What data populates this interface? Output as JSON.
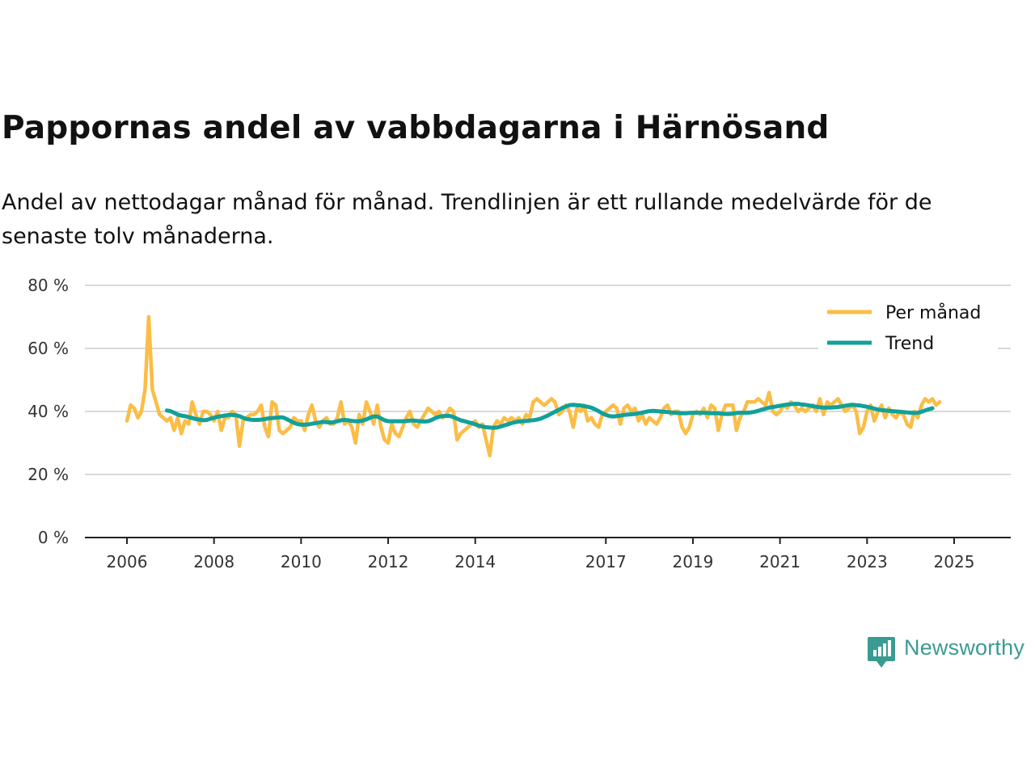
{
  "title": "Pappornas andel av vabbdagarna i Härnösand",
  "subtitle": "Andel av nettodagar månad för månad. Trendlinjen är ett rullande medelvärde för de senaste tolv månaderna.",
  "brand": {
    "name": "Newsworthy",
    "icon": "newsworthy-logo-icon"
  },
  "colors": {
    "monthly": "#fbbd46",
    "trend": "#10a19a",
    "grid": "#d9d9d9",
    "axis": "#222222"
  },
  "chart_data": {
    "type": "line",
    "y_unit": "%",
    "ylim": [
      0,
      80
    ],
    "y_ticks": [
      {
        "value": 0,
        "label": "0 %"
      },
      {
        "value": 20,
        "label": "20 %"
      },
      {
        "value": 40,
        "label": "40 %"
      },
      {
        "value": 60,
        "label": "60 %"
      },
      {
        "value": 80,
        "label": "80 %"
      }
    ],
    "xlim": [
      2005.8,
      2026.35
    ],
    "x_ticks": [
      {
        "value": 2006,
        "label": "2006"
      },
      {
        "value": 2008,
        "label": "2008"
      },
      {
        "value": 2010,
        "label": "2010"
      },
      {
        "value": 2012,
        "label": "2012"
      },
      {
        "value": 2014,
        "label": "2014"
      },
      {
        "value": 2017,
        "label": "2017"
      },
      {
        "value": 2019,
        "label": "2019"
      },
      {
        "value": 2021,
        "label": "2021"
      },
      {
        "value": 2023,
        "label": "2023"
      },
      {
        "value": 2025,
        "label": "2025"
      }
    ],
    "legend": {
      "position": "top-right",
      "entries": [
        "Per månad",
        "Trend"
      ]
    },
    "series": [
      {
        "name": "Per månad",
        "x_start": 2006.0,
        "step": 0.0833333,
        "values": [
          37,
          42,
          41,
          38,
          40,
          47,
          70,
          47,
          43,
          39,
          38,
          37,
          38,
          34,
          38,
          33,
          37,
          36,
          43,
          39,
          36,
          40,
          40,
          39,
          37,
          40,
          34,
          38,
          38,
          40,
          39,
          29,
          37,
          38,
          39,
          39,
          40,
          42,
          35,
          32,
          43,
          42,
          34,
          33,
          34,
          35,
          38,
          37,
          37,
          34,
          39,
          42,
          37,
          35,
          37,
          38,
          36,
          36,
          38,
          43,
          36,
          37,
          35,
          30,
          39,
          36,
          43,
          40,
          36,
          42,
          35,
          31,
          30,
          36,
          33,
          32,
          35,
          38,
          40,
          36,
          35,
          37,
          39,
          41,
          40,
          39,
          40,
          38,
          39,
          41,
          40,
          31,
          33,
          34,
          35,
          36,
          37,
          35,
          36,
          31,
          26,
          35,
          37,
          36,
          38,
          37,
          38,
          37,
          38,
          36,
          39,
          38,
          43,
          44,
          43,
          42,
          43,
          44,
          43,
          39,
          40,
          42,
          40,
          35,
          41,
          40,
          42,
          37,
          38,
          36,
          35,
          39,
          40,
          41,
          42,
          41,
          36,
          41,
          42,
          40,
          41,
          37,
          39,
          36,
          38,
          37,
          36,
          38,
          41,
          42,
          39,
          40,
          40,
          35,
          33,
          35,
          39,
          40,
          39,
          41,
          38,
          42,
          41,
          34,
          39,
          42,
          42,
          42,
          34,
          38,
          40,
          43,
          43,
          43,
          44,
          43,
          42,
          46,
          40,
          39,
          40,
          42,
          41,
          43,
          42,
          40,
          41,
          40,
          41,
          42,
          40,
          44,
          39,
          43,
          42,
          43,
          44,
          42,
          40,
          41,
          42,
          40,
          33,
          35,
          40,
          42,
          37,
          40,
          42,
          38,
          41,
          39,
          38,
          40,
          39,
          36,
          35,
          40,
          38,
          42,
          44,
          43,
          44,
          42,
          43
        ]
      },
      {
        "name": "Trend",
        "x_start": 2006.9167,
        "step": 0.0833333,
        "values": [
          40.3,
          40.1,
          39.6,
          39,
          38.7,
          38.5,
          38.2,
          37.9,
          37.6,
          37.4,
          37.2,
          37.3,
          37.7,
          38,
          38.3,
          38.5,
          38.7,
          38.9,
          38.9,
          38.8,
          38.5,
          38,
          37.6,
          37.4,
          37.3,
          37.3,
          37.4,
          37.6,
          37.8,
          37.9,
          38,
          38.1,
          38.1,
          37.6,
          37,
          36.4,
          36,
          35.8,
          35.8,
          35.9,
          36.1,
          36.3,
          36.5,
          36.7,
          36.6,
          36.5,
          36.6,
          36.9,
          37.2,
          37.3,
          37.2,
          37,
          36.9,
          36.9,
          37.1,
          37.5,
          38,
          38.4,
          38.4,
          37.8,
          37.2,
          36.9,
          36.9,
          36.9,
          36.9,
          36.9,
          37,
          37.1,
          37.1,
          37,
          36.9,
          36.8,
          36.9,
          37.3,
          37.9,
          38.3,
          38.5,
          38.6,
          38.6,
          38.2,
          37.7,
          37.2,
          36.9,
          36.6,
          36.3,
          35.9,
          35.5,
          35.2,
          35,
          34.9,
          34.8,
          34.9,
          35.2,
          35.6,
          35.9,
          36.3,
          36.6,
          36.8,
          36.9,
          37,
          37.1,
          37.2,
          37.4,
          37.7,
          38.2,
          38.7,
          39.3,
          39.9,
          40.5,
          41.1,
          41.6,
          42,
          42.1,
          42,
          41.9,
          41.7,
          41.5,
          41.2,
          40.7,
          40.1,
          39.4,
          38.9,
          38.5,
          38.4,
          38.5,
          38.7,
          38.9,
          39,
          39.1,
          39.2,
          39.4,
          39.6,
          39.9,
          40.1,
          40.2,
          40.1,
          40,
          39.9,
          39.8,
          39.7,
          39.6,
          39.5,
          39.4,
          39.4,
          39.5,
          39.6,
          39.6,
          39.6,
          39.6,
          39.5,
          39.4,
          39.4,
          39.4,
          39.3,
          39.2,
          39.2,
          39.3,
          39.5,
          39.6,
          39.6,
          39.6,
          39.7,
          39.9,
          40.2,
          40.6,
          40.9,
          41.2,
          41.4,
          41.6,
          41.8,
          42,
          42.2,
          42.3,
          42.4,
          42.4,
          42.2,
          42.1,
          41.9,
          41.7,
          41.5,
          41.3,
          41.2,
          41.2,
          41.2,
          41.3,
          41.4,
          41.6,
          41.8,
          42,
          42.1,
          42,
          41.9,
          41.7,
          41.5,
          41.2,
          40.9,
          40.6,
          40.4,
          40.3,
          40.2,
          40.1,
          40,
          39.9,
          39.8,
          39.7,
          39.6,
          39.5,
          39.6,
          39.9,
          40.3,
          40.7,
          41
        ]
      }
    ]
  }
}
